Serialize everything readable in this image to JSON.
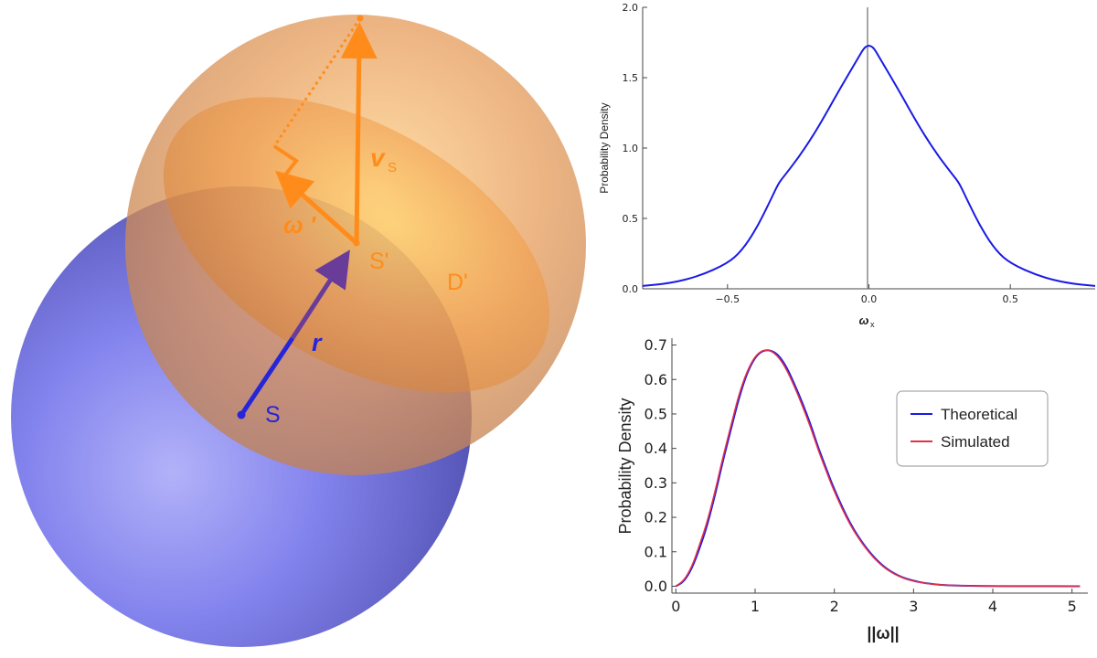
{
  "diagram": {
    "labels": {
      "v_s": "v",
      "v_s_sub": "S",
      "omega_prime": "ω '",
      "s_prime": "S'",
      "d_prime": "D'",
      "r": "r",
      "s": "S"
    },
    "colors": {
      "blue_sphere": "#6a6ae8",
      "orange_sphere": "#f0a055",
      "orange_arrow": "#ff8c1a",
      "blue_arrow": "#2222dd",
      "purple_arrow": "#6a3c9a"
    }
  },
  "chart_data": [
    {
      "type": "line",
      "title": "",
      "xlabel": "ω",
      "xlabel_sub": "x",
      "ylabel": "Probability Density",
      "xlim": [
        -0.8,
        0.8
      ],
      "ylim": [
        0,
        2.0
      ],
      "xticks": [
        -0.5,
        0.0,
        0.5
      ],
      "xtick_labels": [
        "−0.5",
        "0.0",
        "0.5"
      ],
      "yticks": [
        0.0,
        0.5,
        1.0,
        1.5,
        2.0
      ],
      "ytick_labels": [
        "0.0",
        "0.5",
        "1.0",
        "1.5",
        "2.0"
      ],
      "grid": false,
      "vertical_line_at": 0.0,
      "series": [
        {
          "color": "#1a1ae6",
          "x": [
            -0.8,
            -0.7,
            -0.6,
            -0.5,
            -0.45,
            -0.4,
            -0.35,
            -0.32,
            -0.3,
            -0.25,
            -0.2,
            -0.15,
            -0.1,
            -0.05,
            0.0,
            0.05,
            0.1,
            0.15,
            0.2,
            0.25,
            0.3,
            0.32,
            0.35,
            0.4,
            0.45,
            0.5,
            0.6,
            0.7,
            0.8
          ],
          "y": [
            0.02,
            0.04,
            0.09,
            0.18,
            0.27,
            0.42,
            0.62,
            0.75,
            0.8,
            0.93,
            1.08,
            1.25,
            1.43,
            1.6,
            1.77,
            1.6,
            1.43,
            1.25,
            1.08,
            0.93,
            0.8,
            0.75,
            0.62,
            0.42,
            0.27,
            0.18,
            0.09,
            0.04,
            0.02
          ]
        }
      ]
    },
    {
      "type": "line",
      "title": "",
      "xlabel": "||ω||",
      "ylabel": "Probability Density",
      "xlim": [
        -0.05,
        5.2
      ],
      "ylim": [
        -0.02,
        0.72
      ],
      "xticks": [
        0,
        1,
        2,
        3,
        4,
        5
      ],
      "xtick_labels": [
        "0",
        "1",
        "2",
        "3",
        "4",
        "5"
      ],
      "yticks": [
        0.0,
        0.1,
        0.2,
        0.3,
        0.4,
        0.5,
        0.6,
        0.7
      ],
      "ytick_labels": [
        "0.0",
        "0.1",
        "0.2",
        "0.3",
        "0.4",
        "0.5",
        "0.6",
        "0.7"
      ],
      "grid": false,
      "legend_position": "top-right",
      "series": [
        {
          "name": "Theoretical",
          "color": "#1a1ae6",
          "x": [
            0.0,
            0.1,
            0.2,
            0.3,
            0.4,
            0.5,
            0.6,
            0.7,
            0.8,
            0.9,
            1.0,
            1.1,
            1.2,
            1.3,
            1.4,
            1.5,
            1.6,
            1.7,
            1.8,
            1.9,
            2.0,
            2.2,
            2.4,
            2.6,
            2.8,
            3.0,
            3.2,
            3.4,
            3.6,
            3.8,
            4.0,
            4.5,
            5.0,
            5.1
          ],
          "y": [
            0.0,
            0.013,
            0.05,
            0.11,
            0.18,
            0.27,
            0.37,
            0.46,
            0.55,
            0.62,
            0.665,
            0.685,
            0.685,
            0.67,
            0.635,
            0.585,
            0.53,
            0.47,
            0.4,
            0.34,
            0.28,
            0.18,
            0.11,
            0.06,
            0.03,
            0.015,
            0.007,
            0.003,
            0.0015,
            0.0008,
            0.0004,
            0.0001,
            0.0,
            0.0
          ]
        },
        {
          "name": "Simulated",
          "color": "#e0304a",
          "x": [
            0.0,
            0.1,
            0.2,
            0.3,
            0.4,
            0.5,
            0.6,
            0.7,
            0.8,
            0.9,
            1.0,
            1.1,
            1.2,
            1.3,
            1.4,
            1.5,
            1.6,
            1.7,
            1.8,
            1.9,
            2.0,
            2.2,
            2.4,
            2.6,
            2.8,
            3.0,
            3.2,
            3.4,
            3.6,
            3.8,
            4.0,
            4.5,
            5.0,
            5.1
          ],
          "y": [
            0.0,
            0.016,
            0.055,
            0.12,
            0.19,
            0.28,
            0.38,
            0.47,
            0.56,
            0.625,
            0.668,
            0.686,
            0.684,
            0.665,
            0.628,
            0.578,
            0.522,
            0.462,
            0.393,
            0.333,
            0.274,
            0.176,
            0.107,
            0.058,
            0.029,
            0.014,
            0.0065,
            0.003,
            0.0015,
            0.0008,
            0.0004,
            0.0001,
            0.0,
            0.0
          ]
        }
      ]
    }
  ]
}
